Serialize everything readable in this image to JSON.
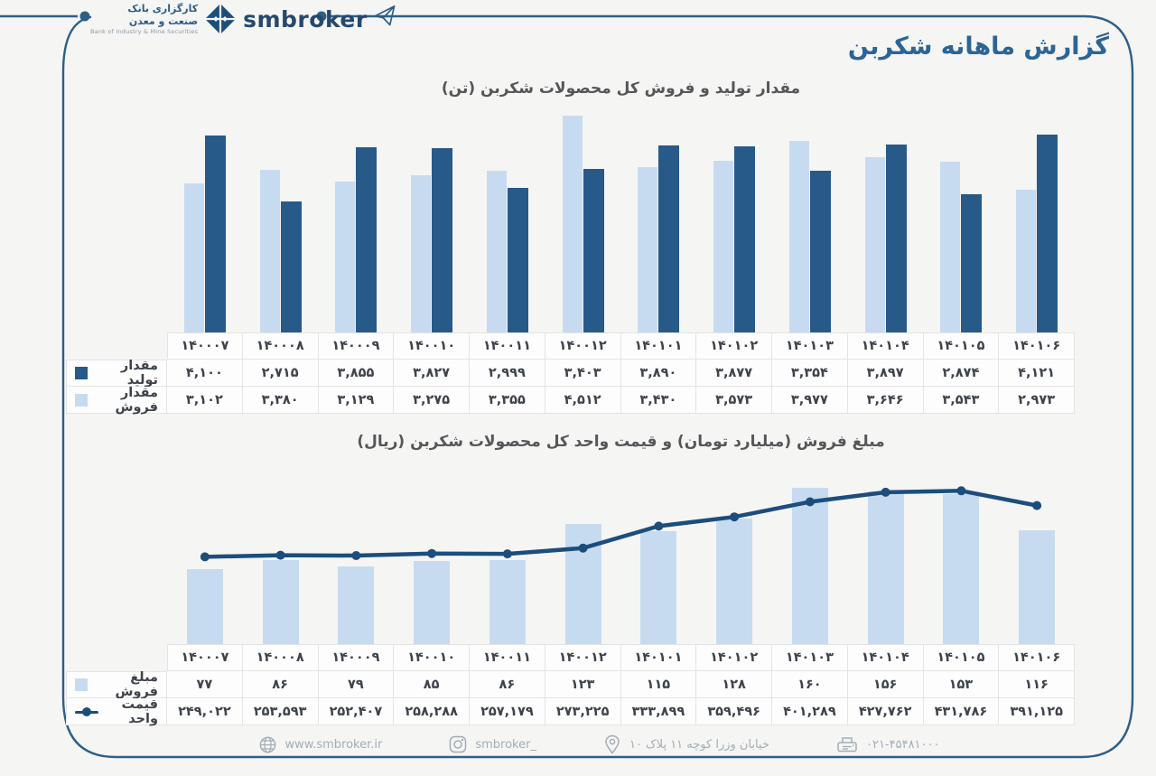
{
  "page": {
    "background": "#f5f5f4",
    "frame_color": "#2d5f86"
  },
  "header": {
    "brand_fa_line1": "کارگزاری بانک",
    "brand_fa_line2": "صنعت و معدن",
    "brand_en": "Bank of Industry & Mine Securities",
    "brand_latin": "smbroker",
    "title": "گزارش ماهانه شکربن"
  },
  "months": [
    "۱۴۰۰۰۷",
    "۱۴۰۰۰۸",
    "۱۴۰۰۰۹",
    "۱۴۰۰۱۰",
    "۱۴۰۰۱۱",
    "۱۴۰۰۱۲",
    "۱۴۰۱۰۱",
    "۱۴۰۱۰۲",
    "۱۴۰۱۰۳",
    "۱۴۰۱۰۴",
    "۱۴۰۱۰۵",
    "۱۴۰۱۰۶"
  ],
  "chart_data": [
    {
      "type": "bar",
      "title": "مقدار تولید و فروش کل محصولات شکربن (تن)",
      "categories": [
        "۱۴۰۰۰۷",
        "۱۴۰۰۰۸",
        "۱۴۰۰۰۹",
        "۱۴۰۰۱۰",
        "۱۴۰۰۱۱",
        "۱۴۰۰۱۲",
        "۱۴۰۱۰۱",
        "۱۴۰۱۰۲",
        "۱۴۰۱۰۳",
        "۱۴۰۱۰۴",
        "۱۴۰۱۰۵",
        "۱۴۰۱۰۶"
      ],
      "series": [
        {
          "name": "مقدار تولید",
          "color": "#275a88",
          "values": [
            4100,
            2715,
            3855,
            3827,
            2999,
            3403,
            3890,
            3877,
            3354,
            3897,
            2874,
            4121
          ],
          "labels": [
            "۴,۱۰۰",
            "۲,۷۱۵",
            "۳,۸۵۵",
            "۳,۸۲۷",
            "۲,۹۹۹",
            "۳,۴۰۳",
            "۳,۸۹۰",
            "۳,۸۷۷",
            "۳,۳۵۴",
            "۳,۸۹۷",
            "۲,۸۷۴",
            "۴,۱۲۱"
          ]
        },
        {
          "name": "مقدار فروش",
          "color": "#c7dbf0",
          "values": [
            3102,
            3380,
            3129,
            3275,
            3355,
            4512,
            3430,
            3573,
            3977,
            3646,
            3543,
            2973
          ],
          "labels": [
            "۳,۱۰۲",
            "۳,۳۸۰",
            "۳,۱۲۹",
            "۳,۲۷۵",
            "۳,۳۵۵",
            "۴,۵۱۲",
            "۳,۴۳۰",
            "۳,۵۷۳",
            "۳,۹۷۷",
            "۳,۶۴۶",
            "۳,۵۴۳",
            "۲,۹۷۳"
          ]
        }
      ],
      "ylim": [
        0,
        4600
      ],
      "grid": false,
      "legend_position": "table-left"
    },
    {
      "type": "bar+line",
      "title": "مبلغ فروش (میلیارد تومان) و قیمت واحد کل محصولات شکربن (ریال)",
      "categories": [
        "۱۴۰۰۰۷",
        "۱۴۰۰۰۸",
        "۱۴۰۰۰۹",
        "۱۴۰۰۱۰",
        "۱۴۰۰۱۱",
        "۱۴۰۰۱۲",
        "۱۴۰۱۰۱",
        "۱۴۰۱۰۲",
        "۱۴۰۱۰۳",
        "۱۴۰۱۰۴",
        "۱۴۰۱۰۵",
        "۱۴۰۱۰۶"
      ],
      "series": [
        {
          "name": "مبلغ فروش",
          "type": "bar",
          "color": "#c7dbf0",
          "values": [
            77,
            86,
            79,
            85,
            86,
            123,
            115,
            128,
            160,
            156,
            153,
            116
          ],
          "labels": [
            "۷۷",
            "۸۶",
            "۷۹",
            "۸۵",
            "۸۶",
            "۱۲۳",
            "۱۱۵",
            "۱۲۸",
            "۱۶۰",
            "۱۵۶",
            "۱۵۳",
            "۱۱۶"
          ]
        },
        {
          "name": "قیمت واحد",
          "type": "line",
          "color": "#1c4d7c",
          "values": [
            249022,
            253593,
            252407,
            258288,
            257179,
            273225,
            333899,
            359496,
            401289,
            427762,
            431786,
            391125
          ],
          "labels": [
            "۲۴۹,۰۲۲",
            "۲۵۳,۵۹۳",
            "۲۵۲,۴۰۷",
            "۲۵۸,۲۸۸",
            "۲۵۷,۱۷۹",
            "۲۷۳,۲۲۵",
            "۳۳۳,۸۹۹",
            "۳۵۹,۴۹۶",
            "۴۰۱,۲۸۹",
            "۴۲۷,۷۶۲",
            "۴۳۱,۷۸۶",
            "۳۹۱,۱۲۵"
          ]
        }
      ],
      "ylim_bar": [
        0,
        168
      ],
      "ylim_line": [
        240000,
        455000
      ],
      "grid": false,
      "legend_position": "table-left"
    }
  ],
  "footer": {
    "website": "www.smbroker.ir",
    "instagram": "smbroker_",
    "address": "خیابان وزرا کوچه ۱۱ پلاک ۱۰",
    "phone": "۰۲۱-۴۵۴۸۱۰۰۰"
  }
}
